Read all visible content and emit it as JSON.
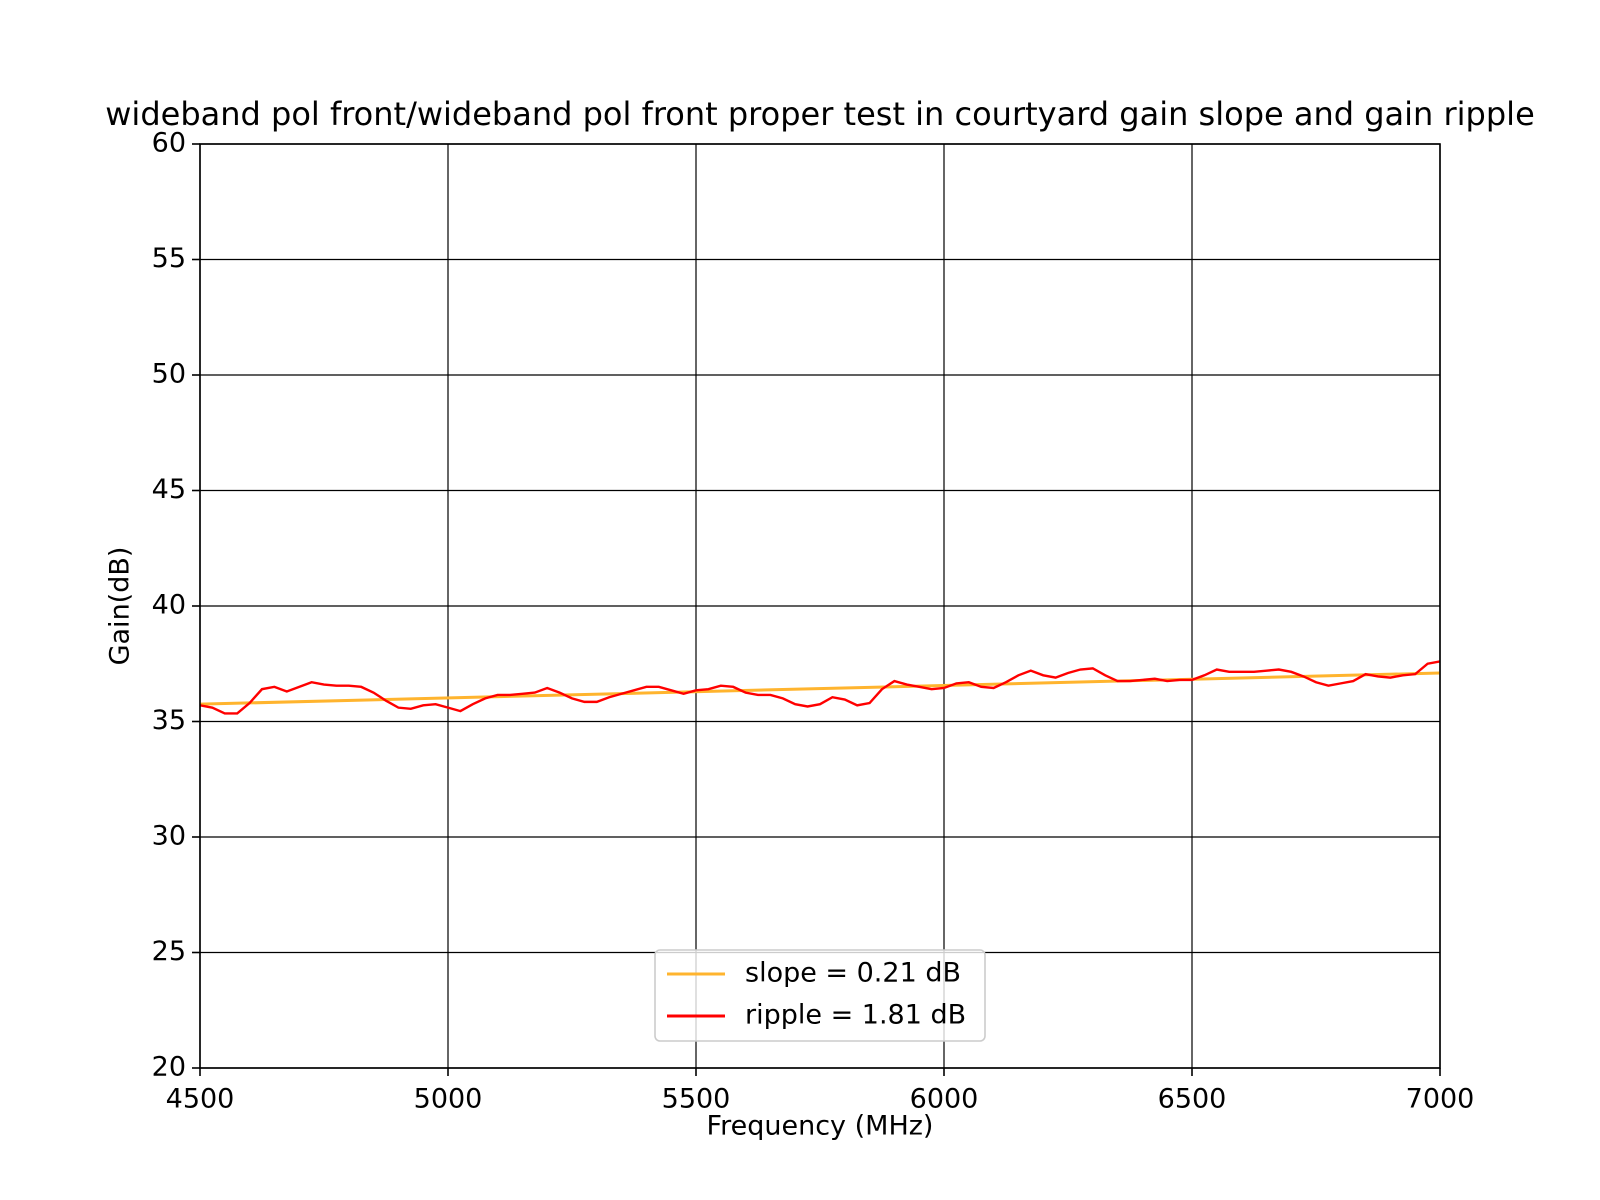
{
  "chart_data": {
    "type": "line",
    "title": "wideband pol front/wideband pol front proper test in courtyard gain slope and gain ripple",
    "x_label": "Frequency (MHz)",
    "y_label": "Gain(dB)",
    "xlim": [
      4500,
      7000
    ],
    "xticks": [
      4500,
      5000,
      5500,
      6000,
      6500,
      7000
    ],
    "ylim": [
      20,
      60
    ],
    "yticks": [
      20,
      25,
      30,
      35,
      40,
      45,
      50,
      55,
      60
    ],
    "grid": true,
    "legend": "lower center",
    "series": [
      {
        "name": "slope = 0.21 dB",
        "color": "#ffb42e",
        "x": [
          4500,
          7000
        ],
        "values": [
          35.75,
          37.1
        ]
      },
      {
        "name": "ripple = 1.81 dB",
        "color": "#ff0000",
        "x": [
          4500,
          4525,
          4550,
          4575,
          4600,
          4625,
          4650,
          4675,
          4700,
          4725,
          4750,
          4775,
          4800,
          4825,
          4850,
          4875,
          4900,
          4925,
          4950,
          4975,
          5000,
          5025,
          5050,
          5075,
          5100,
          5125,
          5150,
          5175,
          5200,
          5225,
          5250,
          5275,
          5300,
          5325,
          5350,
          5375,
          5400,
          5425,
          5450,
          5475,
          5500,
          5525,
          5550,
          5575,
          5600,
          5625,
          5650,
          5675,
          5700,
          5725,
          5750,
          5775,
          5800,
          5825,
          5850,
          5875,
          5900,
          5925,
          5950,
          5975,
          6000,
          6025,
          6050,
          6075,
          6100,
          6125,
          6150,
          6175,
          6200,
          6225,
          6250,
          6275,
          6300,
          6325,
          6350,
          6375,
          6400,
          6425,
          6450,
          6475,
          6500,
          6525,
          6550,
          6575,
          6600,
          6625,
          6650,
          6675,
          6700,
          6725,
          6750,
          6775,
          6800,
          6825,
          6850,
          6875,
          6900,
          6925,
          6950,
          6975,
          7000
        ],
        "values": [
          35.7,
          35.6,
          35.35,
          35.35,
          35.8,
          36.4,
          36.5,
          36.3,
          36.5,
          36.7,
          36.6,
          36.55,
          36.55,
          36.5,
          36.25,
          35.9,
          35.6,
          35.55,
          35.7,
          35.75,
          35.6,
          35.45,
          35.75,
          36.0,
          36.15,
          36.15,
          36.2,
          36.25,
          36.45,
          36.25,
          36.0,
          35.85,
          35.85,
          36.05,
          36.2,
          36.35,
          36.5,
          36.5,
          36.35,
          36.2,
          36.35,
          36.4,
          36.55,
          36.5,
          36.25,
          36.15,
          36.15,
          36.0,
          35.75,
          35.65,
          35.75,
          36.05,
          35.95,
          35.7,
          35.8,
          36.4,
          36.75,
          36.6,
          36.5,
          36.4,
          36.45,
          36.65,
          36.7,
          36.5,
          36.45,
          36.7,
          37.0,
          37.2,
          37.0,
          36.9,
          37.1,
          37.25,
          37.3,
          37.0,
          36.75,
          36.75,
          36.8,
          36.85,
          36.75,
          36.8,
          36.8,
          37.0,
          37.25,
          37.15,
          37.15,
          37.15,
          37.2,
          37.25,
          37.15,
          36.95,
          36.7,
          36.55,
          36.65,
          36.75,
          37.05,
          36.95,
          36.9,
          37.0,
          37.05,
          37.5,
          37.6
        ]
      }
    ]
  }
}
